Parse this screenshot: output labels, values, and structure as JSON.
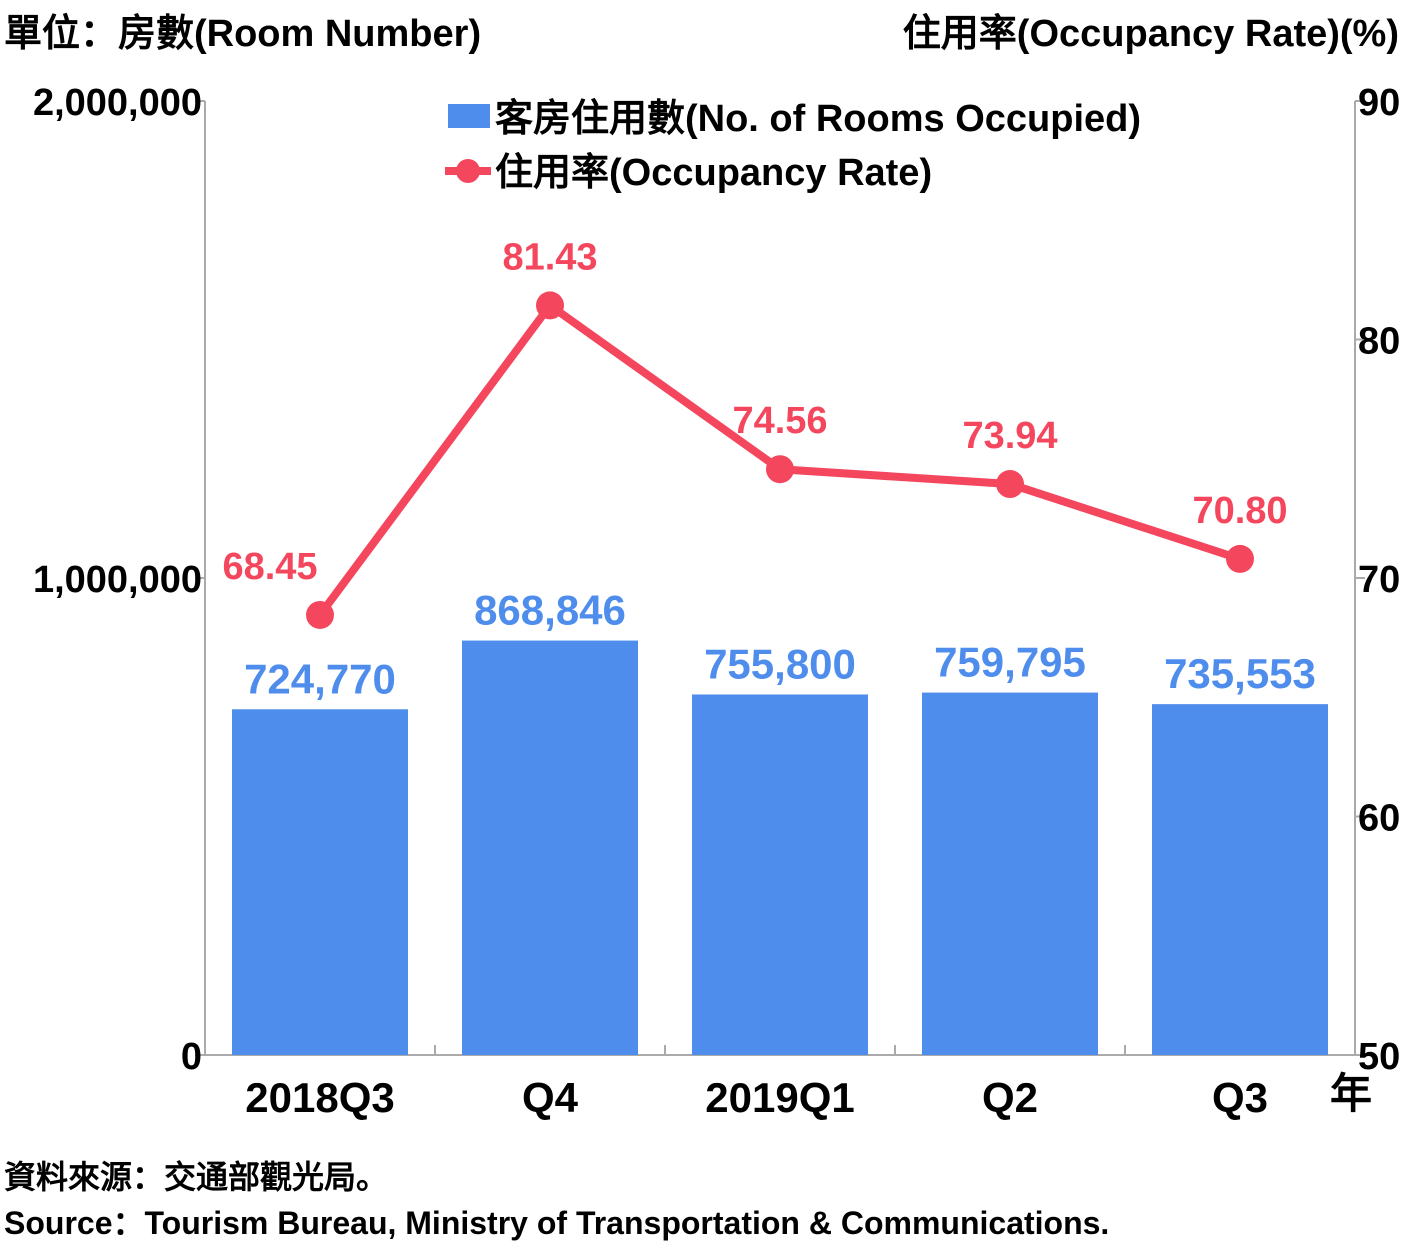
{
  "units": {
    "left": "單位：房數(Room Number)",
    "right": "住用率(Occupancy Rate)(%)"
  },
  "x_unit": "年",
  "source": {
    "zh": "資料來源：交通部觀光局。",
    "en": "Source：Tourism Bureau, Ministry of Transportation & Communications."
  },
  "colors": {
    "bar": "#4f8ded",
    "line": "#f4475e",
    "axis": "#aaaaaa"
  },
  "chart_data": {
    "type": "bar",
    "categories": [
      "2018Q3",
      "Q4",
      "2019Q1",
      "Q2",
      "Q3"
    ],
    "series": [
      {
        "name": "客房住用數(No. of Rooms Occupied)",
        "type": "bar",
        "axis": "left",
        "values": [
          724770,
          868846,
          755800,
          759795,
          735553
        ],
        "labels": [
          "724,770",
          "868,846",
          "755,800",
          "759,795",
          "735,553"
        ]
      },
      {
        "name": "住用率(Occupancy Rate)",
        "type": "line",
        "axis": "right",
        "values": [
          68.45,
          81.43,
          74.56,
          73.94,
          70.8
        ],
        "labels": [
          "68.45",
          "81.43",
          "74.56",
          "73.94",
          "70.80"
        ]
      }
    ],
    "y_left": {
      "range": [
        0,
        2000000
      ],
      "ticks": [
        0,
        1000000,
        2000000
      ],
      "tick_labels": [
        "0",
        "1,000,000",
        "2,000,000"
      ]
    },
    "y_right": {
      "range": [
        50,
        90
      ],
      "ticks": [
        50,
        60,
        70,
        80,
        90
      ],
      "tick_labels": [
        "50",
        "60",
        "70",
        "80",
        "90"
      ]
    },
    "grid": false,
    "legend_position": "top-center"
  }
}
